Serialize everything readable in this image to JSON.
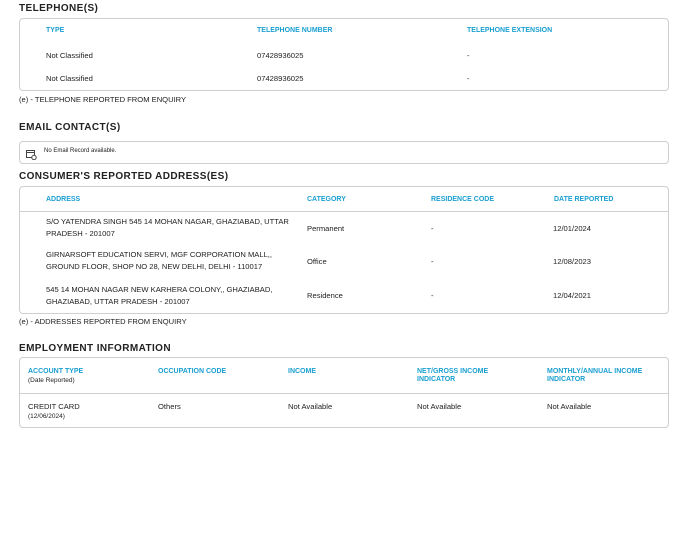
{
  "telephones": {
    "title": "TELEPHONE(S)",
    "headers": [
      "TYPE",
      "TELEPHONE NUMBER",
      "TELEPHONE EXTENSION"
    ],
    "rows": [
      [
        "Not Classified",
        "07428936025",
        "-"
      ],
      [
        "Not Classified",
        "07428936025",
        "-"
      ]
    ],
    "note": "(e) - TELEPHONE REPORTED FROM ENQUIRY"
  },
  "email": {
    "title": "EMAIL CONTACT(S)",
    "message": "No Email Record available."
  },
  "addresses": {
    "title": "CONSUMER'S REPORTED ADDRESS(ES)",
    "headers": [
      "ADDRESS",
      "CATEGORY",
      "RESIDENCE CODE",
      "DATE REPORTED"
    ],
    "rows": [
      [
        "S/O YATENDRA SINGH 545 14 MOHAN NAGAR, GHAZIABAD, UTTAR PRADESH - 201007",
        "Permanent",
        "-",
        "12/01/2024"
      ],
      [
        "GIRNARSOFT EDUCATION SERVI, MGF CORPORATION MALL,, GROUND FLOOR, SHOP NO 28, NEW DELHI, DELHI - 110017",
        "Office",
        "-",
        "12/08/2023"
      ],
      [
        "545 14 MOHAN NAGAR NEW KARHERA COLONY,, GHAZIABAD, GHAZIABAD, UTTAR PRADESH - 201007",
        "Residence",
        "-",
        "12/04/2021"
      ]
    ],
    "note": "(e) - ADDRESSES REPORTED FROM ENQUIRY"
  },
  "employment": {
    "title": "EMPLOYMENT INFORMATION",
    "headers": [
      "ACCOUNT TYPE",
      "OCCUPATION CODE",
      "INCOME",
      "NET/GROSS INCOME INDICATOR",
      "MONTHLY/ANNUAL INCOME INDICATOR"
    ],
    "header_sub": "(Date Reported)",
    "row": {
      "account_type": "CREDIT CARD",
      "date": "(12/06/2024)",
      "occupation": "Others",
      "income": "Not Available",
      "net_gross": "Not Available",
      "monthly_annual": "Not Available"
    }
  },
  "colors": {
    "header": "#1a9fd0",
    "border": "#cfcfcf"
  }
}
